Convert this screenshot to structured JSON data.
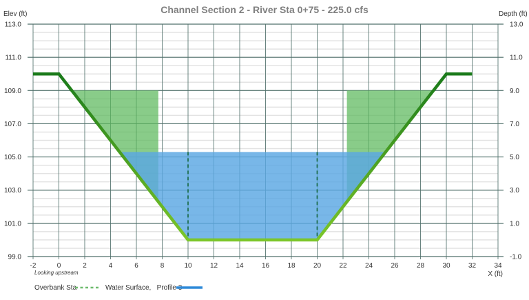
{
  "chart_data": {
    "type": "area",
    "title": "Channel Section 2 - River Sta 0+75 - 225.0 cfs",
    "xlabel": "X (ft)",
    "ylabel": "Elev (ft)",
    "y2label": "Depth (ft)",
    "note": "Looking upstream",
    "xlim": [
      -2,
      34
    ],
    "ylim": [
      99.0,
      113.0
    ],
    "y2lim": [
      -1.0,
      13.0
    ],
    "x_ticks": [
      "-2",
      "0",
      "2",
      "4",
      "6",
      "8",
      "10",
      "12",
      "14",
      "16",
      "18",
      "20",
      "22",
      "24",
      "26",
      "28",
      "30",
      "32",
      "34"
    ],
    "y_ticks": [
      "113.0",
      "111.0",
      "109.0",
      "107.0",
      "105.0",
      "103.0",
      "101.0",
      "99.0"
    ],
    "y2_ticks": [
      "13.0",
      "11.0",
      "9.0",
      "7.0",
      "5.0",
      "3.0",
      "1.0",
      "-1.0"
    ],
    "grid": true,
    "legend_position": "bottom",
    "series": [
      {
        "name": "Ground",
        "color": "#1e7d1e",
        "x": [
          -2,
          0,
          10,
          20,
          30,
          32
        ],
        "y": [
          110.0,
          110.0,
          100.0,
          100.0,
          110.0,
          110.0
        ]
      },
      {
        "name": "Overbank Sta",
        "style": "dashed",
        "color": "#2e8b57",
        "x": [
          10,
          20
        ],
        "y_range": [
          100.0,
          105.3
        ]
      },
      {
        "name": "Water Surface,   Profile 3",
        "color": "#3a8fd9",
        "water_surface_elev": 105.3,
        "x_extent": [
          4.7,
          25.3
        ]
      },
      {
        "name": "Left Overbank Region",
        "color": "#4caf50",
        "x_extent": [
          1.0,
          7.7
        ],
        "top_elev": 109.0
      },
      {
        "name": "Right Overbank Region",
        "color": "#4caf50",
        "x_extent": [
          22.3,
          29.0
        ],
        "top_elev": 109.0
      }
    ]
  },
  "legend": {
    "items": [
      {
        "label": "Overbank Sta",
        "style": "dashed",
        "color": "#6dbb6d"
      },
      {
        "label": "Water Surface,   Profile 3",
        "style": "solid",
        "color": "#2f8ad8"
      }
    ]
  },
  "colors": {
    "ground_dark": "#1a7a1a",
    "ground_light": "#7cc62a",
    "water": "#5aa7e3",
    "overbank": "#5cb85c",
    "grid_major": "#4f6f6a",
    "grid_minor": "#e3e3e3"
  }
}
